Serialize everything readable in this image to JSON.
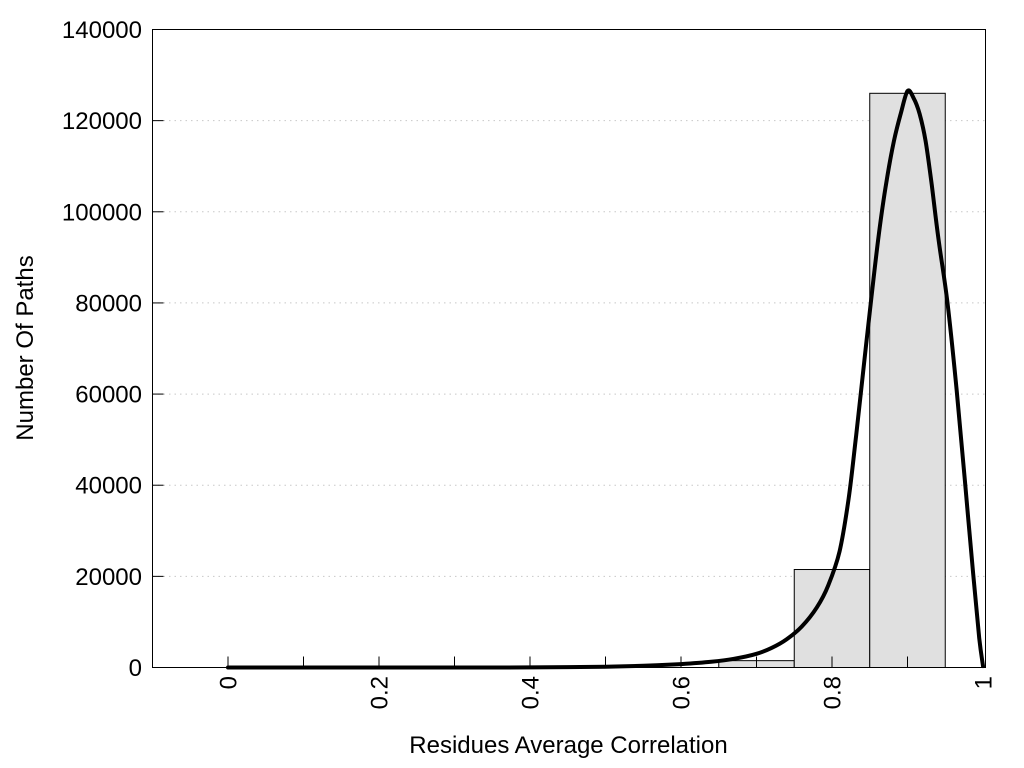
{
  "page": {
    "background_color": "#ffffff"
  },
  "chart_data": {
    "type": "histogram+line",
    "title": "",
    "xlabel": "Residues Average Correlation",
    "ylabel": "Number Of Paths",
    "xlim": [
      -0.1,
      1.003
    ],
    "ylim": [
      0,
      140000
    ],
    "x_tick_values": [
      0,
      0.2,
      0.4,
      0.6,
      0.8,
      1
    ],
    "x_tick_labels": [
      "0",
      "0.2",
      "0.4",
      "0.6",
      "0.8",
      "1"
    ],
    "x_minor_tick_step": 0.1,
    "x_tick_label_rotation": -90,
    "y_tick_values": [
      0,
      20000,
      40000,
      60000,
      80000,
      100000,
      120000,
      140000
    ],
    "y_tick_labels": [
      "0",
      "20000",
      "40000",
      "60000",
      "80000",
      "100000",
      "120000",
      "140000"
    ],
    "grid": {
      "show": true,
      "style": "dotted",
      "color": "#c8c8c8"
    },
    "legend": null,
    "bar_fill": "#e0e0e0",
    "bar_stroke": "#000000",
    "bars": [
      {
        "x0": 0.65,
        "x1": 0.75,
        "count": 1500
      },
      {
        "x0": 0.75,
        "x1": 0.85,
        "count": 21500
      },
      {
        "x0": 0.85,
        "x1": 0.95,
        "count": 126000
      }
    ],
    "curve": {
      "name": "density-line",
      "color": "#000000",
      "width": 4,
      "points": [
        [
          0.0,
          0
        ],
        [
          0.05,
          0
        ],
        [
          0.1,
          0
        ],
        [
          0.15,
          0
        ],
        [
          0.2,
          0
        ],
        [
          0.25,
          0
        ],
        [
          0.3,
          0
        ],
        [
          0.35,
          10
        ],
        [
          0.4,
          30
        ],
        [
          0.45,
          80
        ],
        [
          0.5,
          180
        ],
        [
          0.55,
          380
        ],
        [
          0.6,
          750
        ],
        [
          0.64,
          1250
        ],
        [
          0.67,
          1900
        ],
        [
          0.7,
          3000
        ],
        [
          0.72,
          4300
        ],
        [
          0.74,
          6200
        ],
        [
          0.76,
          9000
        ],
        [
          0.78,
          13200
        ],
        [
          0.795,
          18000
        ],
        [
          0.81,
          25500
        ],
        [
          0.822,
          37000
        ],
        [
          0.832,
          51000
        ],
        [
          0.842,
          66000
        ],
        [
          0.852,
          81000
        ],
        [
          0.862,
          95000
        ],
        [
          0.872,
          106500
        ],
        [
          0.882,
          115500
        ],
        [
          0.891,
          121500
        ],
        [
          0.9,
          126500
        ],
        [
          0.908,
          125000
        ],
        [
          0.916,
          121500
        ],
        [
          0.924,
          115500
        ],
        [
          0.932,
          106000
        ],
        [
          0.941,
          94000
        ],
        [
          0.953,
          80000
        ],
        [
          0.965,
          61000
        ],
        [
          0.976,
          41000
        ],
        [
          0.987,
          20500
        ],
        [
          0.995,
          6500
        ],
        [
          1.0,
          300
        ]
      ]
    }
  }
}
